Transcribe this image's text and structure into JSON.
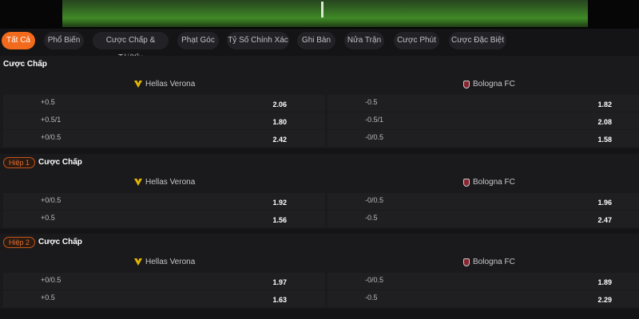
{
  "tabs": [
    "Tất Cả",
    "Phổ Biến",
    "Cược Chấp & Tài/Xỉu",
    "Phạt Góc",
    "Tỷ Số Chính Xác",
    "Ghi Bàn",
    "Nửa Trận",
    "Cược Phút",
    "Cược Đặc Biệt"
  ],
  "active_tab": "Tất Cả",
  "accent_color": "#f26a1b",
  "sections": [
    {
      "badge": "",
      "title": "Cược Chấp",
      "home": "Hellas Verona",
      "away": "Bologna FC",
      "rows": [
        {
          "hh": "+0.5",
          "ho": "2.06",
          "ah": "-0.5",
          "ao": "1.82"
        },
        {
          "hh": "+0.5/1",
          "ho": "1.80",
          "ah": "-0.5/1",
          "ao": "2.08"
        },
        {
          "hh": "+0/0.5",
          "ho": "2.42",
          "ah": "-0/0.5",
          "ao": "1.58"
        }
      ]
    },
    {
      "badge": "Hiệp 1",
      "title": "Cược Chấp",
      "home": "Hellas Verona",
      "away": "Bologna FC",
      "rows": [
        {
          "hh": "+0/0.5",
          "ho": "1.92",
          "ah": "-0/0.5",
          "ao": "1.96"
        },
        {
          "hh": "+0.5",
          "ho": "1.56",
          "ah": "-0.5",
          "ao": "2.47"
        }
      ]
    },
    {
      "badge": "Hiệp 2",
      "title": "Cược Chấp",
      "home": "Hellas Verona",
      "away": "Bologna FC",
      "rows": [
        {
          "hh": "+0/0.5",
          "ho": "1.97",
          "ah": "-0/0.5",
          "ao": "1.89"
        },
        {
          "hh": "+0.5",
          "ho": "1.63",
          "ah": "-0.5",
          "ao": "2.29"
        }
      ]
    }
  ]
}
